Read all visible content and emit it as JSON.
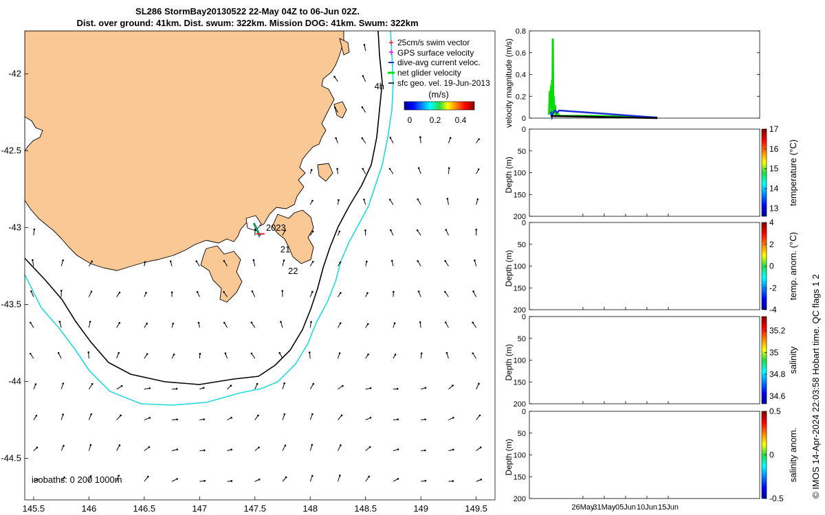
{
  "title": {
    "line1": "SL286 StormBay20130522 22-May 04Z to 06-Jun 02Z.",
    "line2": "Dist. over ground: 41km. Dist. swum: 322km. Mission DOG: 41km. Swum: 322km"
  },
  "credit": "© IMOS 14-Apr-2024 22:03:58 Hobart time. QC flags 1  2",
  "colors": {
    "land": "#f9c894",
    "isobath_200": "#000000",
    "isobath_1000": "#22d7dd",
    "swim_vector": "#e41a1c",
    "gps_velocity": "#ff00ff",
    "dive_avg": "#1d2fd4",
    "net_velocity": "#00dd00",
    "sfc_geo": "#000000"
  },
  "chart_data": [
    {
      "type": "map",
      "name": "track-map",
      "xlim": [
        145.42,
        149.67
      ],
      "ylim": [
        -44.77,
        -41.72
      ],
      "xticks": [
        "145.5",
        "146",
        "146.5",
        "147",
        "147.5",
        "148",
        "148.5",
        "149",
        "149.5"
      ],
      "yticks": [
        "-42",
        "-42.5",
        "-43",
        "-43.5",
        "-44",
        "-44.5"
      ],
      "legend": {
        "placement": "top-right",
        "entries": [
          "25cm/s swim vector",
          "GPS surface velocity",
          "dive-avg current veloc.",
          "net glider velocity",
          "sfc geo. vel. 19-Jun-2013"
        ]
      },
      "colorbar": {
        "title": "(m/s)",
        "ticks": [
          "0",
          "0.2",
          "0.4"
        ],
        "range": [
          0,
          0.5
        ]
      },
      "isobaths_label": "isobaths: 0   200   1000m",
      "annotations": [
        {
          "text": "4h",
          "lon": 148.58,
          "lat": -42.1
        },
        {
          "text": "2023",
          "lon": 147.6,
          "lat": -43.02
        },
        {
          "text": "21",
          "lon": 147.73,
          "lat": -43.16
        },
        {
          "text": "22",
          "lon": 147.8,
          "lat": -43.3
        }
      ],
      "glider_track": [
        [
          147.49,
          -42.97
        ],
        [
          147.51,
          -43.0
        ],
        [
          147.53,
          -43.03
        ],
        [
          147.54,
          -43.05
        ],
        [
          147.55,
          -43.04
        ]
      ]
    },
    {
      "type": "line",
      "name": "velocity-magnitude",
      "ylabel": "velocity magnitude (m/s)",
      "ylim": [
        0,
        0.8
      ],
      "yticks": [
        "0",
        "0.2",
        "0.4",
        "0.6",
        "0.8"
      ],
      "xlim_days": [
        0,
        54
      ],
      "series": [
        {
          "name": "net glider velocity",
          "color": "#00dd00",
          "x": [
            4.6,
            4.8,
            5.0,
            5.1,
            5.2,
            5.3,
            5.4,
            5.5,
            5.6,
            5.7,
            5.8,
            6.0,
            6.2,
            6.5,
            7,
            10,
            15,
            20,
            25,
            30
          ],
          "y": [
            0.03,
            0.25,
            0.1,
            0.3,
            0.02,
            0.35,
            0.05,
            0.73,
            0.08,
            0.2,
            0.04,
            0.12,
            0.03,
            0.05,
            0.02,
            0.02,
            0.02,
            0.015,
            0.01,
            0.005
          ]
        },
        {
          "name": "dive-avg current veloc.",
          "color": "#1d2fd4",
          "x": [
            5.0,
            5.3,
            5.6,
            6.0,
            6.5,
            7.0,
            30
          ],
          "y": [
            0.06,
            0.01,
            0.05,
            0.07,
            0.05,
            0.07,
            0.005
          ]
        },
        {
          "name": "sfc geo. vel.",
          "color": "#000000",
          "x": [
            5.0,
            30
          ],
          "y": [
            0.02,
            0.0
          ]
        }
      ]
    },
    {
      "type": "heatmap",
      "name": "temperature-section",
      "ylabel": "Depth (m)",
      "yticks": [
        "0",
        "50",
        "100",
        "150",
        "200"
      ],
      "colorbar_label": "temperature (°C)",
      "colorbar_ticks": [
        "17",
        "16",
        "15",
        "14",
        "13"
      ],
      "crange": [
        12.6,
        17
      ]
    },
    {
      "type": "heatmap",
      "name": "temp-anomaly-section",
      "ylabel": "Depth (m)",
      "yticks": [
        "0",
        "50",
        "100",
        "150",
        "200"
      ],
      "colorbar_label": "temp. anom. (°C)",
      "colorbar_ticks": [
        "4",
        "2",
        "0",
        "-2",
        "-4"
      ],
      "crange": [
        -4,
        4
      ]
    },
    {
      "type": "heatmap",
      "name": "salinity-section",
      "ylabel": "Depth (m)",
      "yticks": [
        "0",
        "50",
        "100",
        "150",
        "200"
      ],
      "colorbar_label": "salinity",
      "colorbar_ticks": [
        "35.2",
        "35",
        "34.8",
        "34.6"
      ],
      "crange": [
        34.53,
        35.33
      ]
    },
    {
      "type": "heatmap",
      "name": "salinity-anomaly-section",
      "ylabel": "Depth (m)",
      "yticks": [
        "0",
        "50",
        "100",
        "150",
        "200"
      ],
      "colorbar_label": "salinity anom.",
      "colorbar_ticks": [
        "0.5",
        "0",
        "-0.5"
      ],
      "crange": [
        -0.5,
        0.5
      ],
      "xticks": [
        "26May",
        "31May",
        "05Jun",
        "10Jun",
        "15Jun"
      ]
    }
  ]
}
